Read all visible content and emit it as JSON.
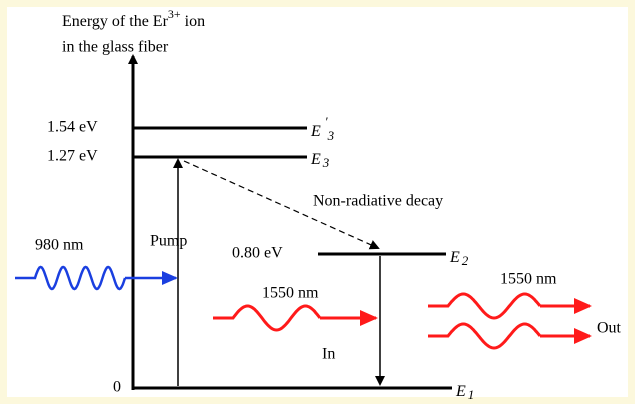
{
  "axis_label": {
    "line1": "Energy of the Er",
    "superscript": "3+",
    "line1_end": " ion",
    "line2": "in the glass fiber"
  },
  "levels": [
    {
      "energy": "1.54 eV",
      "symbol": "E",
      "prime": "′",
      "subscript": "3"
    },
    {
      "energy": "1.27 eV",
      "symbol": "E",
      "subscript": "3"
    },
    {
      "energy": "0.80 eV",
      "symbol": "E",
      "subscript": "2"
    },
    {
      "energy": "0",
      "symbol": "E",
      "subscript": "1"
    }
  ],
  "pump": {
    "label": "Pump",
    "wavelength": "980 nm"
  },
  "decay": {
    "label": "Non-radiative decay"
  },
  "signal_in": {
    "wavelength": "1550 nm",
    "label": "In"
  },
  "signal_out": {
    "wavelength": "1550 nm",
    "label": "Out"
  }
}
